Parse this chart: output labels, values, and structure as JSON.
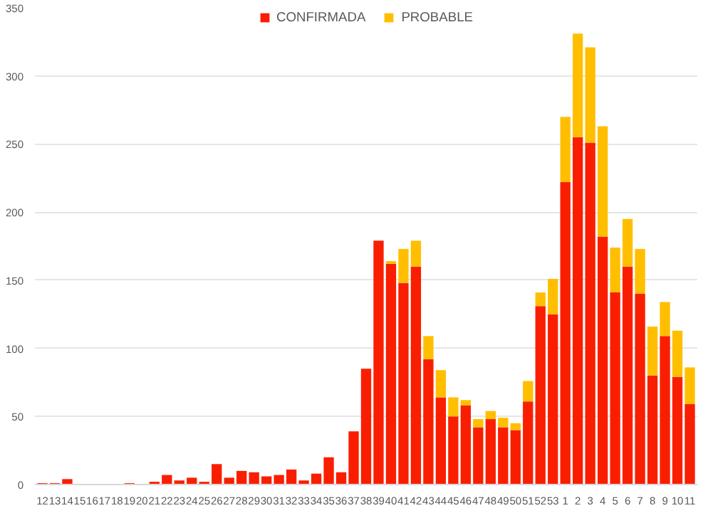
{
  "chart_data": {
    "type": "bar",
    "stacked": true,
    "categories": [
      "12",
      "13",
      "14",
      "15",
      "16",
      "17",
      "18",
      "19",
      "20",
      "21",
      "22",
      "23",
      "24",
      "25",
      "26",
      "27",
      "28",
      "29",
      "30",
      "31",
      "32",
      "33",
      "34",
      "35",
      "36",
      "37",
      "38",
      "39",
      "40",
      "41",
      "42",
      "43",
      "44",
      "45",
      "46",
      "47",
      "48",
      "49",
      "50",
      "51",
      "52",
      "53",
      "1",
      "2",
      "3",
      "4",
      "5",
      "6",
      "7",
      "8",
      "9",
      "10",
      "11"
    ],
    "series": [
      {
        "name": "CONFIRMADA",
        "color": "#fa1e00",
        "values": [
          1,
          1,
          4,
          0,
          0,
          0,
          0,
          1,
          0,
          2,
          7,
          3,
          5,
          2,
          15,
          5,
          10,
          9,
          6,
          7,
          11,
          3,
          8,
          20,
          9,
          39,
          85,
          179,
          162,
          148,
          160,
          92,
          64,
          50,
          58,
          42,
          48,
          42,
          40,
          61,
          131,
          125,
          222,
          255,
          251,
          182,
          141,
          160,
          140,
          80,
          109,
          79,
          59
        ]
      },
      {
        "name": "PROBABLE",
        "color": "#ffbf00",
        "values": [
          0,
          0,
          0,
          0,
          0,
          0,
          0,
          0,
          0,
          0,
          0,
          0,
          0,
          0,
          0,
          0,
          0,
          0,
          0,
          0,
          0,
          0,
          0,
          0,
          0,
          0,
          0,
          0,
          2,
          25,
          19,
          17,
          20,
          14,
          4,
          6,
          6,
          7,
          5,
          15,
          10,
          26,
          48,
          76,
          70,
          81,
          33,
          35,
          33,
          36,
          25,
          34,
          27
        ]
      }
    ],
    "ylim": [
      0,
      350
    ],
    "yticks": [
      0,
      50,
      100,
      150,
      200,
      250,
      300,
      350
    ],
    "grid": "y",
    "legend": "top"
  }
}
